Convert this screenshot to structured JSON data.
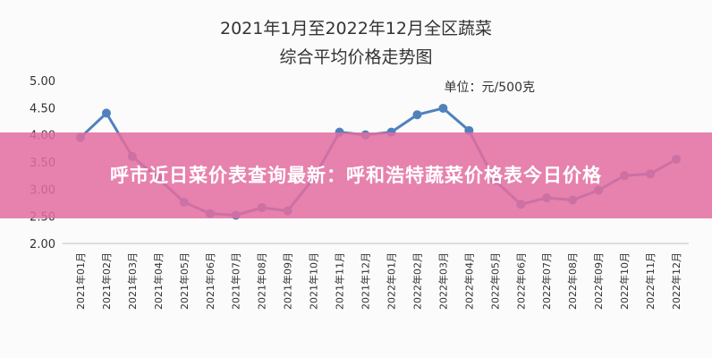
{
  "banner": {
    "text": "呼市近日菜价表查询最新：呼和浩特蔬菜价格表今日价格"
  },
  "colors": {
    "line": "#4f81bd",
    "banner": "#e26ea0"
  },
  "chart_data": {
    "type": "line",
    "title_lines": [
      "2021年1月至2022年12月全区蔬菜",
      "综合平均价格走势图"
    ],
    "unit_label": "单位：元/500克",
    "ylim": [
      2.0,
      5.0
    ],
    "yticks": [
      "5.00",
      "4.50",
      "4.00",
      "3.50",
      "3.00",
      "2.50",
      "2.00"
    ],
    "grid": false,
    "legend": "none",
    "categories": [
      "2021年01月",
      "2021年02月",
      "2021年03月",
      "2021年04月",
      "2021年05月",
      "2021年06月",
      "2021年07月",
      "2021年08月",
      "2021年09月",
      "2021年10月",
      "2021年11月",
      "2021年12月",
      "2022年01月",
      "2022年02月",
      "2022年03月",
      "2022年04月",
      "2022年05月",
      "2022年06月",
      "2022年07月",
      "2022年08月",
      "2022年09月",
      "2022年10月",
      "2022年11月",
      "2022年12月"
    ],
    "values": [
      3.95,
      4.4,
      3.6,
      3.2,
      2.76,
      2.55,
      2.52,
      2.66,
      2.6,
      3.2,
      4.05,
      4.0,
      4.05,
      4.37,
      4.49,
      4.08,
      3.16,
      2.72,
      2.84,
      2.8,
      2.98,
      3.25,
      3.28,
      3.55
    ]
  }
}
